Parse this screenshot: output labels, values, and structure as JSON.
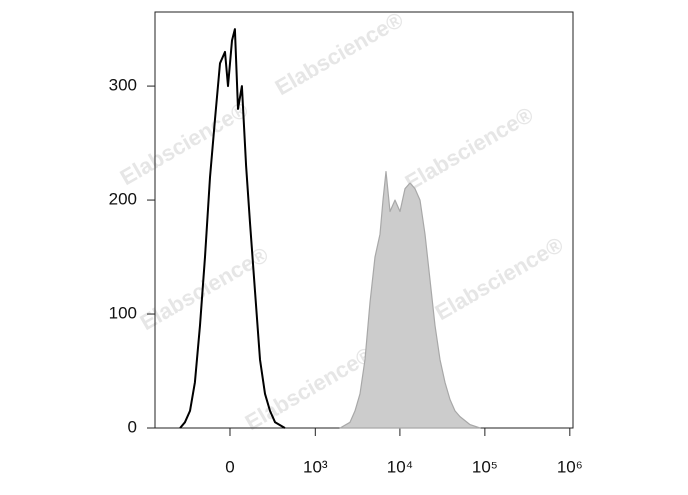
{
  "chart_data": {
    "type": "histogram-overlay",
    "watermark": "Elabscience®",
    "xscale": "asinh",
    "asinh_cofactor": 200,
    "xlim": [
      -750,
      1090000
    ],
    "xticks": [
      0,
      {
        "value": 1000,
        "label": "10³"
      },
      {
        "value": 10000,
        "label": "10⁴"
      },
      {
        "value": 100000,
        "label": "10⁵"
      },
      {
        "value": 1000000,
        "label": "10⁶"
      }
    ],
    "ylim": [
      0,
      365
    ],
    "yticks": [
      0,
      100,
      200,
      300
    ],
    "series": [
      {
        "color": "#000000",
        "filled": false,
        "x": [
          -361,
          -310,
          -262,
          -220,
          -181,
          -146,
          -114,
          -84,
          -55,
          -27,
          -11,
          11,
          27,
          44,
          66,
          90,
          114,
          146,
          181,
          220,
          262,
          310,
          421
        ],
        "values": [
          0,
          5,
          15,
          40,
          90,
          150,
          220,
          270,
          320,
          330,
          300,
          340,
          350,
          280,
          300,
          230,
          180,
          120,
          60,
          30,
          15,
          5,
          0
        ]
      },
      {
        "color": "#a8a8a8",
        "fill_color": "#cccccc",
        "filled": true,
        "x": [
          1970,
          2580,
          2960,
          3390,
          3880,
          4440,
          5090,
          5830,
          6320,
          6860,
          7640,
          8750,
          10020,
          11480,
          13140,
          15050,
          17230,
          19740,
          22600,
          25880,
          29630,
          33940,
          38860,
          44500,
          50960,
          66800,
          87600
        ],
        "values": [
          0,
          5,
          15,
          30,
          60,
          110,
          150,
          170,
          200,
          225,
          190,
          200,
          190,
          210,
          215,
          210,
          200,
          170,
          130,
          90,
          60,
          40,
          25,
          15,
          10,
          3,
          0
        ]
      }
    ]
  }
}
